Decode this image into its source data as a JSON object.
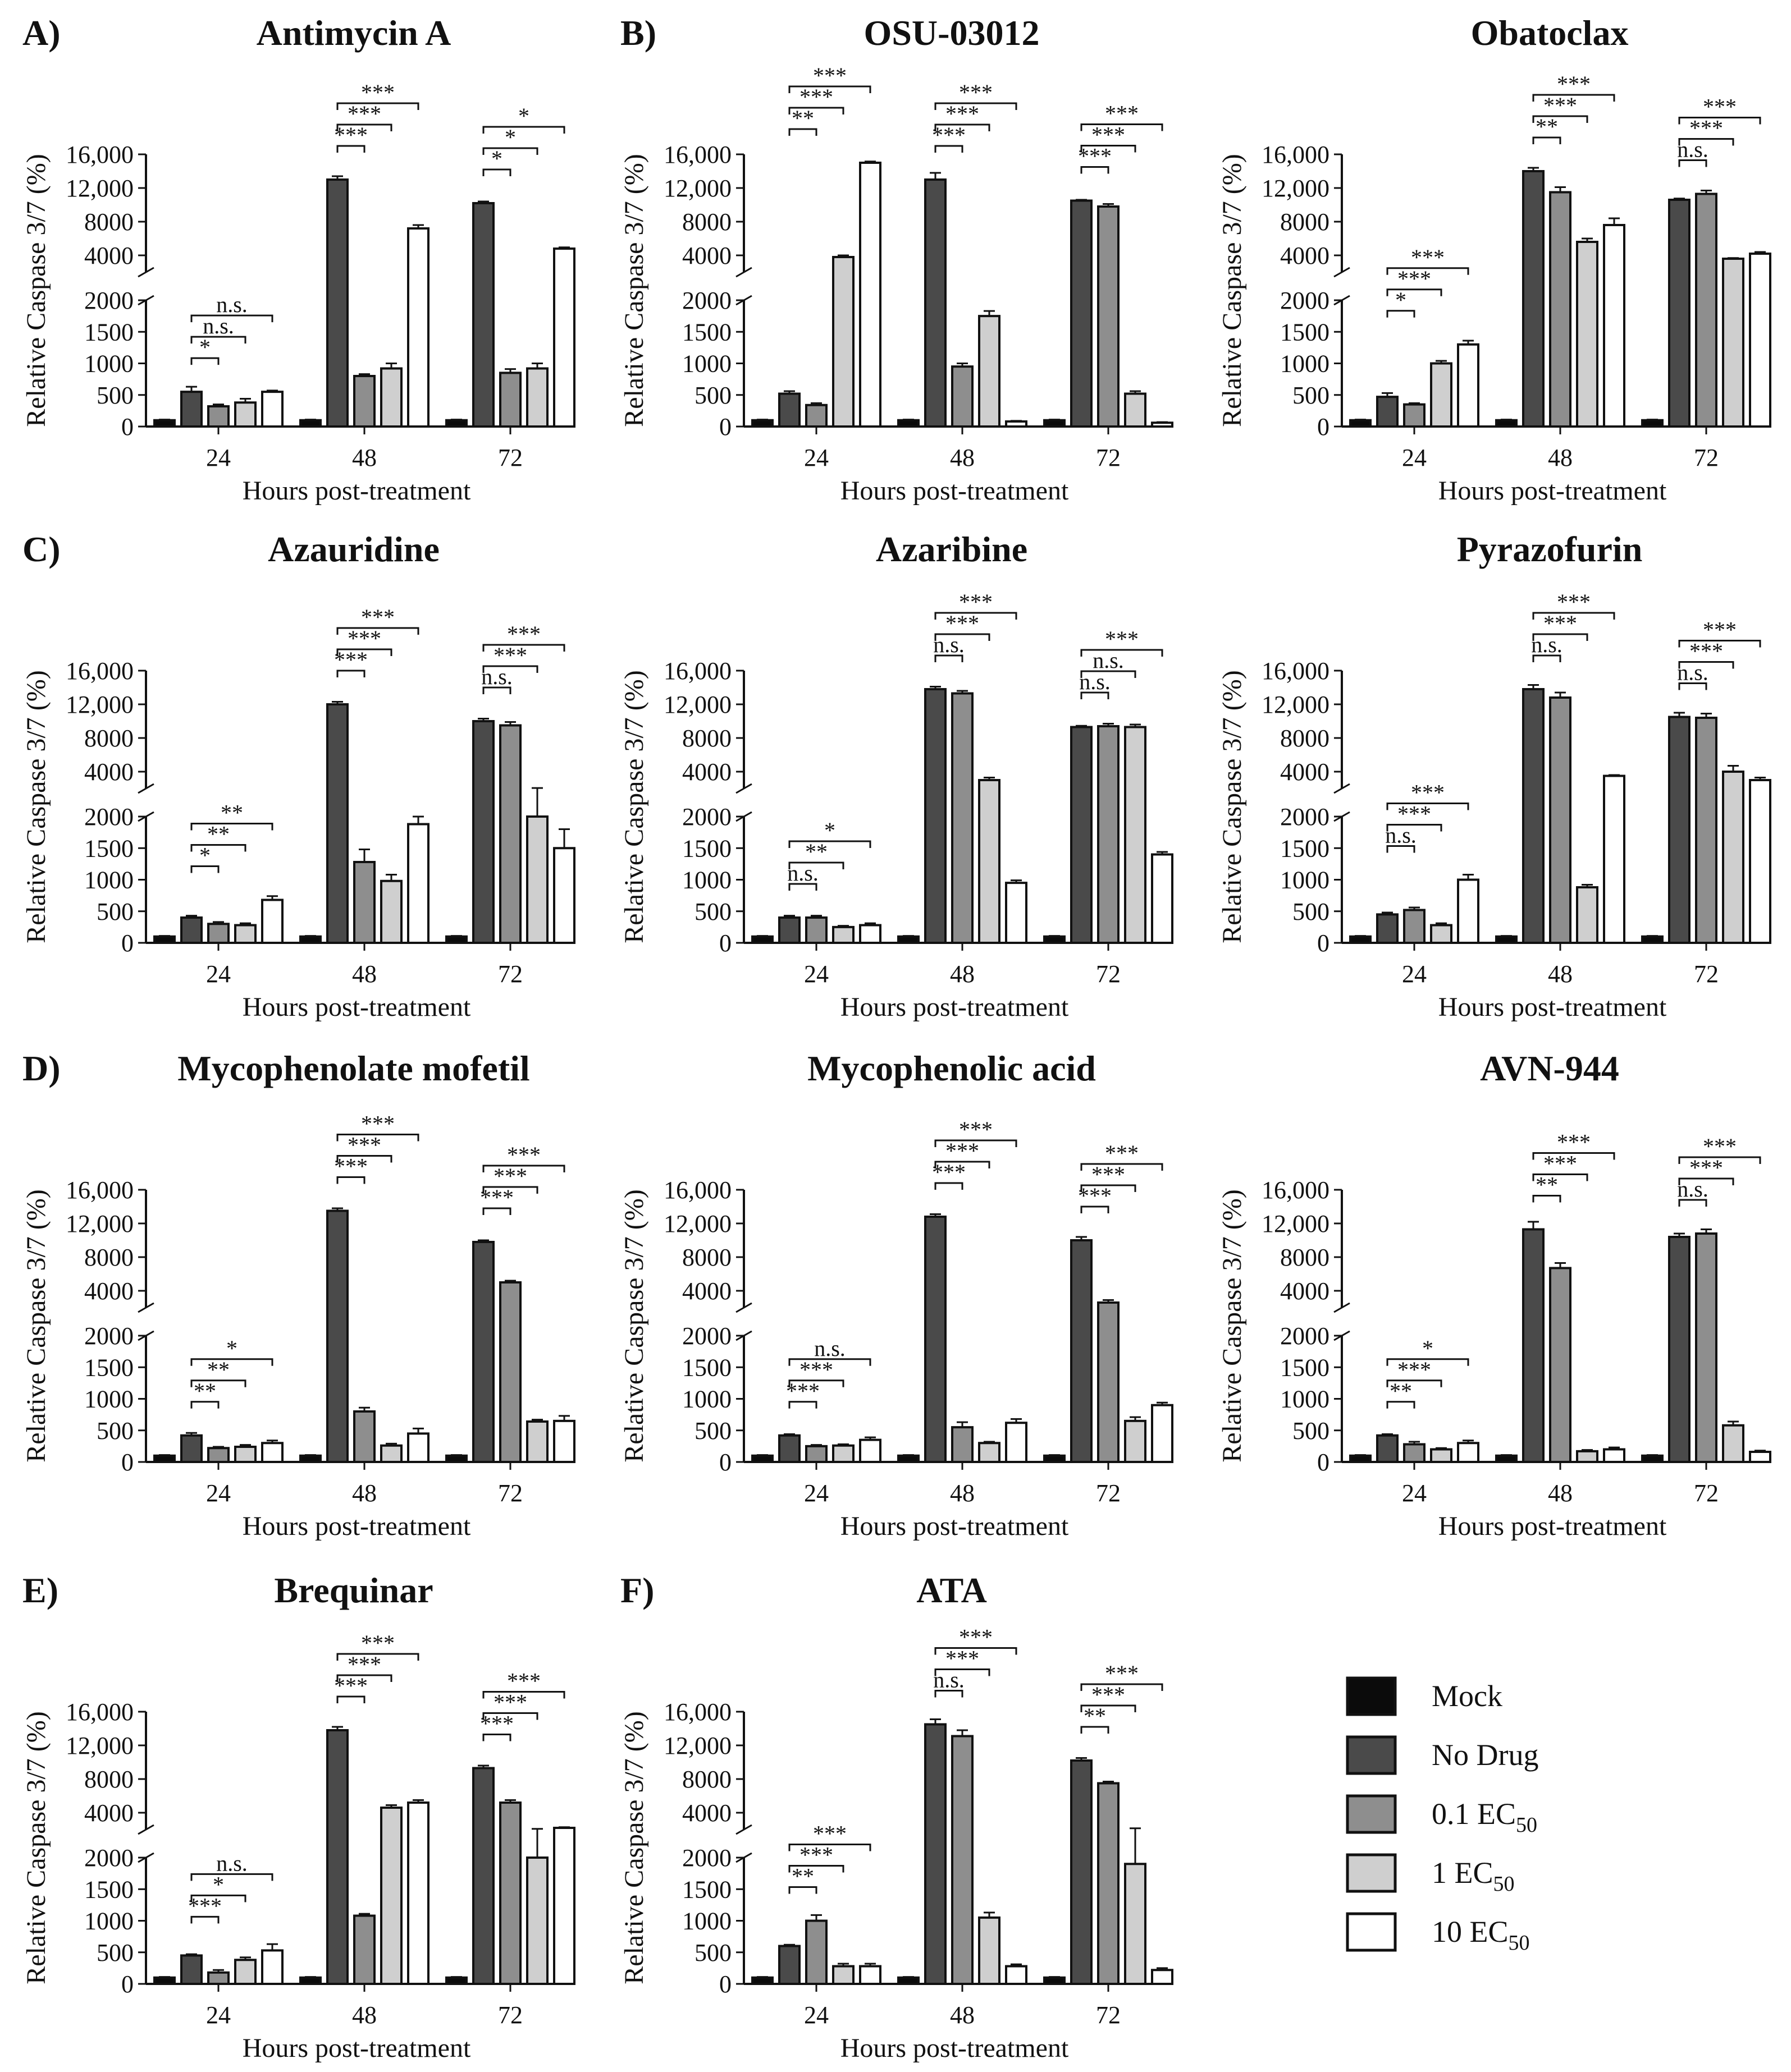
{
  "chart_data": {
    "type": "bar",
    "layout": "grid 3 columns x 4 rows of broken-axis grouped bar charts",
    "shared": {
      "ylabel": "Relative Caspase 3/7 (%)",
      "xlabel": "Hours post-treatment",
      "categories": [
        "24",
        "48",
        "72"
      ],
      "series_names": [
        "Mock",
        "No Drug",
        "0.1 EC50",
        "1 EC50",
        "10 EC50"
      ],
      "y_lower_ticks": [
        "0",
        "500",
        "1000",
        "1500",
        "2000"
      ],
      "y_upper_ticks": [
        "4000",
        "8000",
        "12,000",
        "16,000"
      ],
      "y_lower_range": [
        0,
        2000
      ],
      "y_upper_range": [
        2000,
        16000
      ],
      "colors": [
        "#0b0b0b",
        "#4a4a4a",
        "#8e8e8e",
        "#cfcfcf",
        "#ffffff"
      ]
    },
    "legend": {
      "items": [
        {
          "label": "Mock",
          "sub": "",
          "color": "#0b0b0b"
        },
        {
          "label": "No Drug",
          "sub": "",
          "color": "#4a4a4a"
        },
        {
          "label": "0.1 EC",
          "sub": "50",
          "color": "#8e8e8e"
        },
        {
          "label": "1 EC",
          "sub": "50",
          "color": "#cfcfcf"
        },
        {
          "label": "10 EC",
          "sub": "50",
          "color": "#ffffff"
        }
      ]
    },
    "panels": [
      {
        "letter": "A)",
        "title": "Antimycin A",
        "values": [
          [
            100,
            550,
            320,
            380,
            550
          ],
          [
            100,
            13000,
            800,
            920,
            7200
          ],
          [
            100,
            10200,
            850,
            920,
            4800
          ]
        ],
        "errors": [
          [
            10,
            80,
            30,
            60,
            20
          ],
          [
            10,
            400,
            30,
            80,
            400
          ],
          [
            10,
            200,
            60,
            80,
            150
          ]
        ],
        "sig": [
          [
            "*",
            "n.s.",
            "n.s."
          ],
          [
            "***",
            "***",
            "***"
          ],
          [
            "*",
            "*",
            "*"
          ]
        ]
      },
      {
        "letter": "B)",
        "title": "OSU-03012",
        "values": [
          [
            100,
            520,
            340,
            3800,
            15000
          ],
          [
            100,
            13000,
            950,
            1750,
            80
          ],
          [
            100,
            10500,
            9800,
            520,
            60
          ]
        ],
        "errors": [
          [
            10,
            40,
            30,
            200,
            150
          ],
          [
            10,
            800,
            50,
            80,
            10
          ],
          [
            10,
            100,
            300,
            40,
            10
          ]
        ],
        "sig": [
          [
            "**",
            "***",
            "***"
          ],
          [
            "***",
            "***",
            "***"
          ],
          [
            "***",
            "***",
            "***"
          ]
        ]
      },
      {
        "letter": "",
        "title": "Obatoclax",
        "values": [
          [
            100,
            470,
            350,
            1000,
            1300
          ],
          [
            100,
            14000,
            11500,
            5600,
            7600
          ],
          [
            100,
            10600,
            11300,
            3600,
            4200
          ]
        ],
        "errors": [
          [
            10,
            60,
            20,
            40,
            60
          ],
          [
            10,
            400,
            600,
            400,
            800
          ],
          [
            10,
            150,
            400,
            80,
            200
          ]
        ],
        "sig": [
          [
            "*",
            "***",
            "***"
          ],
          [
            "**",
            "***",
            "***"
          ],
          [
            "n.s.",
            "***",
            "***"
          ]
        ]
      },
      {
        "letter": "C)",
        "title": "Azauridine",
        "values": [
          [
            100,
            400,
            300,
            280,
            680
          ],
          [
            100,
            12000,
            1280,
            980,
            1880
          ],
          [
            100,
            10000,
            9500,
            2000,
            1500
          ]
        ],
        "errors": [
          [
            10,
            30,
            30,
            30,
            60
          ],
          [
            10,
            300,
            200,
            100,
            120
          ],
          [
            10,
            300,
            400,
            60,
            300
          ]
        ],
        "sig": [
          [
            "*",
            "**",
            "**"
          ],
          [
            "***",
            "***",
            "***"
          ],
          [
            "n.s.",
            "***",
            "***"
          ]
        ]
      },
      {
        "letter": "",
        "title": "Azaribine",
        "values": [
          [
            100,
            400,
            400,
            250,
            280
          ],
          [
            100,
            13800,
            13300,
            3000,
            950
          ],
          [
            100,
            9300,
            9400,
            9300,
            1400
          ]
        ],
        "errors": [
          [
            10,
            30,
            30,
            20,
            30
          ],
          [
            10,
            300,
            300,
            300,
            40
          ],
          [
            10,
            150,
            300,
            300,
            40
          ]
        ],
        "sig": [
          [
            "n.s.",
            "**",
            "*"
          ],
          [
            "n.s.",
            "***",
            "***"
          ],
          [
            "n.s.",
            "n.s.",
            "***"
          ]
        ]
      },
      {
        "letter": "",
        "title": "Pyrazofurin",
        "values": [
          [
            100,
            450,
            520,
            280,
            1000
          ],
          [
            100,
            13800,
            12800,
            880,
            3500
          ],
          [
            100,
            10500,
            10400,
            4000,
            3000
          ]
        ],
        "errors": [
          [
            10,
            30,
            40,
            30,
            80
          ],
          [
            10,
            500,
            600,
            40,
            100
          ],
          [
            10,
            500,
            500,
            700,
            300
          ]
        ],
        "sig": [
          [
            "n.s.",
            "***",
            "***"
          ],
          [
            "n.s.",
            "***",
            "***"
          ],
          [
            "n.s.",
            "***",
            "***"
          ]
        ]
      },
      {
        "letter": "D)",
        "title": "Mycophenolate mofetil",
        "values": [
          [
            100,
            420,
            220,
            240,
            300
          ],
          [
            100,
            13500,
            800,
            260,
            450
          ],
          [
            100,
            9800,
            5000,
            640,
            650
          ]
        ],
        "errors": [
          [
            10,
            40,
            20,
            30,
            40
          ],
          [
            10,
            300,
            60,
            30,
            80
          ],
          [
            10,
            200,
            200,
            30,
            80
          ]
        ],
        "sig": [
          [
            "**",
            "**",
            "*"
          ],
          [
            "***",
            "***",
            "***"
          ],
          [
            "***",
            "***",
            "***"
          ]
        ]
      },
      {
        "letter": "",
        "title": "Mycophenolic acid",
        "values": [
          [
            100,
            420,
            250,
            260,
            350
          ],
          [
            100,
            12800,
            550,
            300,
            620
          ],
          [
            100,
            10000,
            2600,
            650,
            900
          ]
        ],
        "errors": [
          [
            10,
            20,
            20,
            20,
            40
          ],
          [
            10,
            300,
            80,
            20,
            60
          ],
          [
            10,
            400,
            300,
            60,
            40
          ]
        ],
        "sig": [
          [
            "***",
            "***",
            "n.s."
          ],
          [
            "***",
            "***",
            "***"
          ],
          [
            "***",
            "***",
            "***"
          ]
        ]
      },
      {
        "letter": "",
        "title": "AVN-944",
        "values": [
          [
            100,
            420,
            280,
            200,
            300
          ],
          [
            100,
            11300,
            6700,
            170,
            200
          ],
          [
            100,
            10400,
            10800,
            580,
            160
          ]
        ],
        "errors": [
          [
            10,
            20,
            40,
            20,
            40
          ],
          [
            10,
            900,
            600,
            20,
            30
          ],
          [
            10,
            400,
            500,
            60,
            20
          ]
        ],
        "sig": [
          [
            "**",
            "***",
            "*"
          ],
          [
            "**",
            "***",
            "***"
          ],
          [
            "n.s.",
            "***",
            "***"
          ]
        ]
      },
      {
        "letter": "E)",
        "title": "Brequinar",
        "values": [
          [
            100,
            450,
            180,
            380,
            530
          ],
          [
            100,
            13800,
            1080,
            4600,
            5200
          ],
          [
            100,
            9300,
            5200,
            2000,
            2200
          ]
        ],
        "errors": [
          [
            10,
            20,
            40,
            40,
            100
          ],
          [
            10,
            400,
            30,
            300,
            300
          ],
          [
            10,
            300,
            300,
            80,
            80
          ]
        ],
        "sig": [
          [
            "***",
            "*",
            "n.s."
          ],
          [
            "***",
            "***",
            "***"
          ],
          [
            "***",
            "***",
            "***"
          ]
        ]
      },
      {
        "letter": "F)",
        "title": "ATA",
        "values": [
          [
            100,
            600,
            1000,
            280,
            280
          ],
          [
            100,
            14500,
            13100,
            1050,
            280
          ],
          [
            100,
            10200,
            7500,
            1900,
            220
          ]
        ],
        "errors": [
          [
            10,
            20,
            90,
            40,
            40
          ],
          [
            10,
            600,
            700,
            80,
            30
          ],
          [
            10,
            300,
            200,
            250,
            30
          ]
        ],
        "sig": [
          [
            "**",
            "***",
            "***"
          ],
          [
            "n.s.",
            "***",
            "***"
          ],
          [
            "**",
            "***",
            "***"
          ]
        ]
      }
    ]
  }
}
